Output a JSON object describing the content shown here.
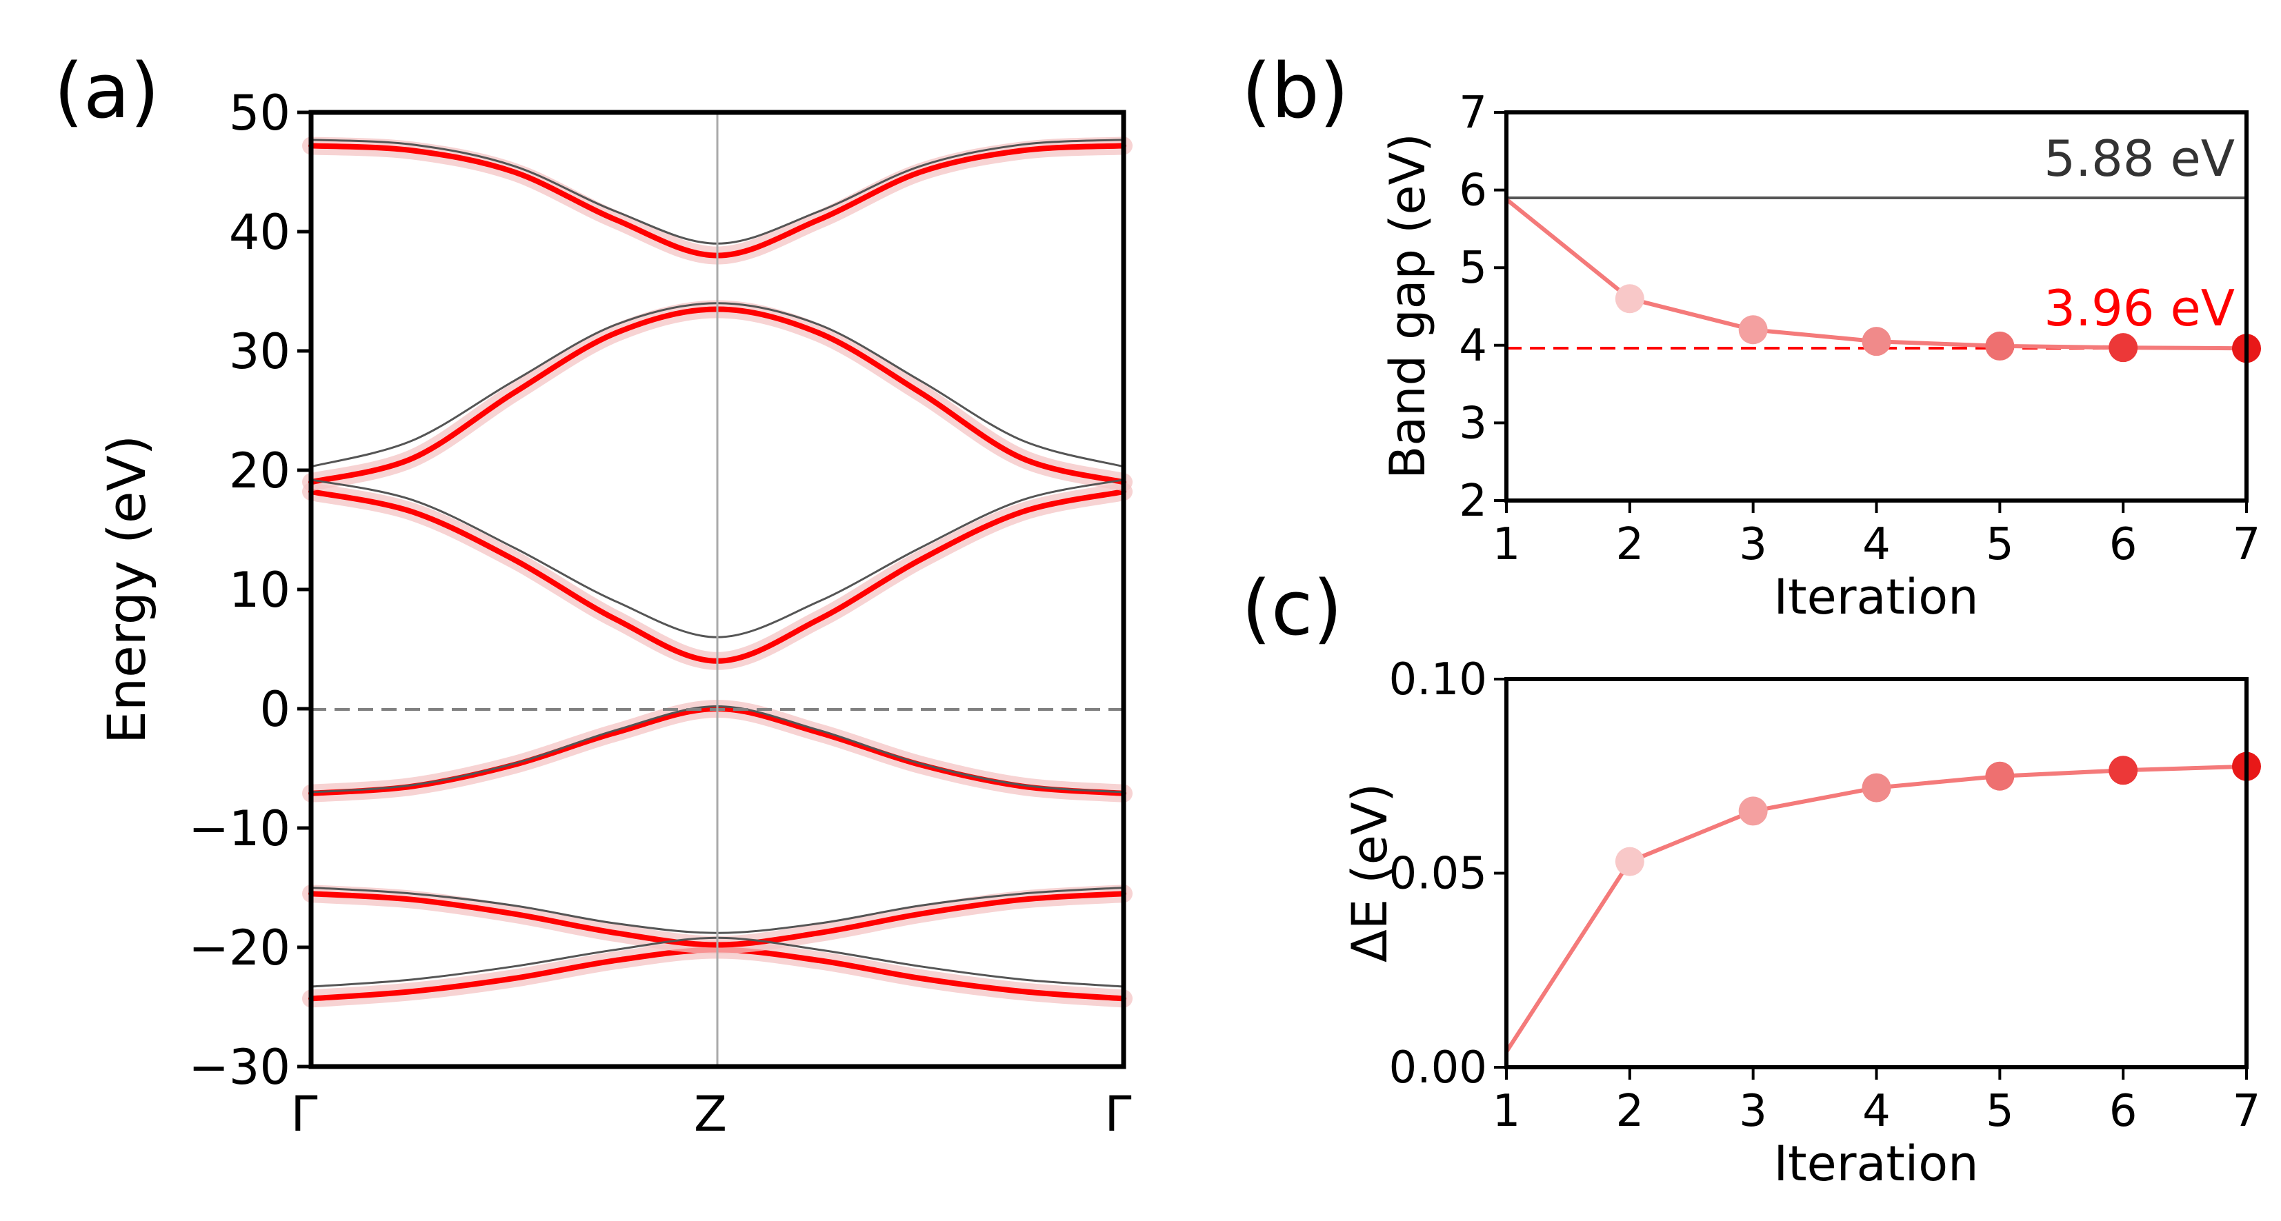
{
  "chart_data": [
    {
      "panel": "(a)",
      "type": "line",
      "title": "",
      "xlabel": "",
      "ylabel": "Energy (eV)",
      "ylim": [
        -30,
        50
      ],
      "yticks": [
        -30,
        -20,
        -10,
        0,
        10,
        20,
        30,
        40,
        50
      ],
      "ytick_labels": [
        "−30",
        "−20",
        "−10",
        "0",
        "10",
        "20",
        "30",
        "40",
        "50"
      ],
      "kpoints": [
        "Γ",
        "Z",
        "Γ"
      ],
      "fermi_level": 0,
      "band_colors": {
        "initial": "#555555",
        "intermediate": "#f4c4c4",
        "final": "#ff0000",
        "reference_line": "#999999"
      },
      "x": [
        0,
        0.125,
        0.25,
        0.375,
        0.5,
        0.625,
        0.75,
        0.875,
        1
      ],
      "series": [
        {
          "name": "band 1 final",
          "values": [
            -24.3,
            -23.7,
            -22.6,
            -21.1,
            -20.2,
            -21.1,
            -22.6,
            -23.7,
            -24.3
          ]
        },
        {
          "name": "band 2 final",
          "values": [
            -15.5,
            -16.0,
            -17.2,
            -18.8,
            -19.8,
            -18.8,
            -17.2,
            -16.0,
            -15.5
          ]
        },
        {
          "name": "band 3 final",
          "values": [
            -7.1,
            -6.5,
            -4.7,
            -2.0,
            0.0,
            -2.0,
            -4.7,
            -6.5,
            -7.1
          ]
        },
        {
          "name": "band 4 final",
          "values": [
            18.2,
            16.5,
            12.5,
            7.5,
            4.0,
            7.5,
            12.5,
            16.5,
            18.2
          ]
        },
        {
          "name": "band 5 final",
          "values": [
            19.0,
            21.0,
            26.5,
            31.5,
            33.5,
            31.5,
            26.5,
            21.0,
            19.0
          ]
        },
        {
          "name": "band 6 final",
          "values": [
            47.2,
            46.8,
            45.0,
            41.0,
            38.0,
            41.0,
            45.0,
            46.8,
            47.2
          ]
        },
        {
          "name": "band 1 initial",
          "values": [
            -23.3,
            -22.7,
            -21.6,
            -20.2,
            -19.2,
            -20.2,
            -21.6,
            -22.7,
            -23.3
          ]
        },
        {
          "name": "band 2 initial",
          "values": [
            -15.0,
            -15.5,
            -16.5,
            -18.0,
            -18.8,
            -18.0,
            -16.5,
            -15.5,
            -15.0
          ]
        },
        {
          "name": "band 3 initial",
          "values": [
            -7.0,
            -6.4,
            -4.6,
            -1.8,
            0.2,
            -1.8,
            -4.6,
            -6.4,
            -7.0
          ]
        },
        {
          "name": "band 4 initial",
          "values": [
            19.2,
            17.5,
            13.5,
            9.0,
            6.0,
            9.0,
            13.5,
            17.5,
            19.2
          ]
        },
        {
          "name": "band 5 initial",
          "values": [
            20.3,
            22.5,
            27.5,
            32.2,
            34.0,
            32.2,
            27.5,
            22.5,
            20.3
          ]
        },
        {
          "name": "band 6 initial",
          "values": [
            47.7,
            47.3,
            45.5,
            41.7,
            39.0,
            41.7,
            45.5,
            47.3,
            47.7
          ]
        }
      ]
    },
    {
      "panel": "(b)",
      "type": "line",
      "title": "",
      "xlabel": "Iteration",
      "ylabel": "Band gap (eV)",
      "xlim": [
        1,
        7
      ],
      "ylim": [
        2,
        7
      ],
      "xticks": [
        1,
        2,
        3,
        4,
        5,
        6,
        7
      ],
      "yticks": [
        2,
        3,
        4,
        5,
        6,
        7
      ],
      "x": [
        1,
        2,
        3,
        4,
        5,
        6,
        7
      ],
      "series": [
        {
          "name": "Band gap",
          "values": [
            5.88,
            4.6,
            4.2,
            4.05,
            3.99,
            3.97,
            3.96
          ]
        }
      ],
      "reference_lines": [
        {
          "value": 5.88,
          "label": "5.88 eV",
          "color": "#555555",
          "style": "solid"
        },
        {
          "value": 3.96,
          "label": "3.96 eV",
          "color": "#ff0000",
          "style": "dashed"
        }
      ]
    },
    {
      "panel": "(c)",
      "type": "line",
      "title": "",
      "xlabel": "Iteration",
      "ylabel": "ΔE (eV)",
      "xlim": [
        1,
        7
      ],
      "ylim": [
        0.0,
        0.1
      ],
      "xticks": [
        1,
        2,
        3,
        4,
        5,
        6,
        7
      ],
      "yticks": [
        0.0,
        0.05,
        0.1
      ],
      "ytick_labels": [
        "0.00",
        "0.05",
        "0.10"
      ],
      "x": [
        1,
        2,
        3,
        4,
        5,
        6,
        7
      ],
      "series": [
        {
          "name": "ΔE",
          "values": [
            0.004,
            0.053,
            0.066,
            0.072,
            0.075,
            0.0765,
            0.0775
          ]
        }
      ]
    }
  ],
  "colors": {
    "line": "#f47a7a",
    "markers": [
      "#f8b4b4",
      "#f8c8c8",
      "#f4a0a0",
      "#f08a8a",
      "#ee7070",
      "#ec3838",
      "#e81818"
    ]
  }
}
